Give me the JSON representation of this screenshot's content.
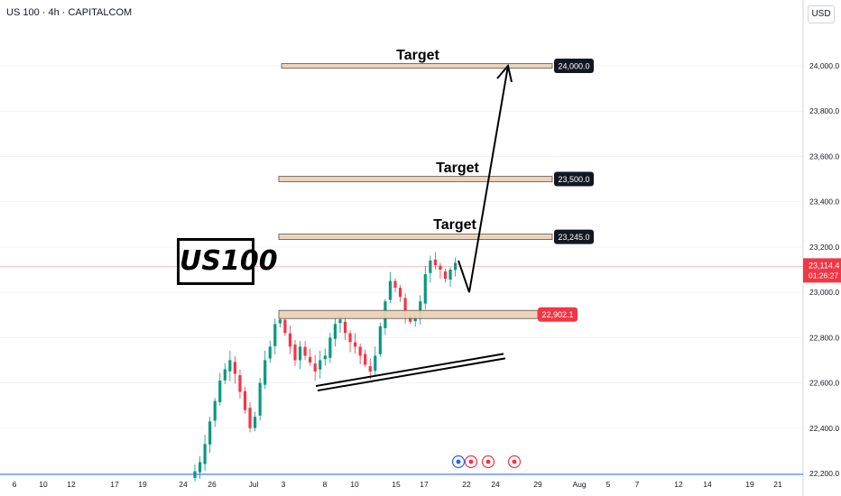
{
  "symbol": "US 100 · 4h · CAPITALCOM",
  "currency": "USD",
  "title": "US100",
  "countdown": "01:26:27",
  "colors": {
    "up": "#089981",
    "down": "#f23645",
    "zone_fill": "#e9d2b8",
    "zone_stroke": "#5a4a3a",
    "label_dark": "#131722",
    "label_red": "#f23645",
    "grid": "#f0f3fa",
    "price_line": "#f23645",
    "axis_line": "#2962ff"
  },
  "chart_data": {
    "type": "candlestick",
    "symbol": "US 100",
    "timeframe": "4h",
    "yaxis": {
      "ticks": [
        22200,
        22400,
        22600,
        22800,
        23000,
        23200,
        23400,
        23600,
        23800,
        24000
      ],
      "tick_labels": [
        "22,200.0",
        "22,400.0",
        "22,600.0",
        "22,800.0",
        "23,000.0",
        "23,200.0",
        "23,400.0",
        "23,600.0",
        "23,800.0",
        "24,000.0"
      ],
      "ylim": [
        22200,
        24200
      ]
    },
    "xaxis": {
      "tick_labels": [
        "6",
        "10",
        "12",
        "17",
        "19",
        "24",
        "26",
        "Jul",
        "3",
        "8",
        "10",
        "15",
        "17",
        "22",
        "24",
        "29",
        "Aug",
        "5",
        "7",
        "12",
        "14",
        "19",
        "21"
      ]
    },
    "current_price": {
      "value": 23114.4,
      "label": "23,114.4"
    },
    "levels": [
      {
        "name": "Target",
        "value": 24000,
        "label": "24,000.0"
      },
      {
        "name": "Target",
        "value": 23500,
        "label": "23,500.0"
      },
      {
        "name": "Target",
        "value": 23245,
        "label": "23,245.0"
      },
      {
        "name": "",
        "value": 22902.1,
        "label": "22,902.1"
      }
    ],
    "projection": {
      "points": [
        23140,
        23000,
        24000
      ]
    },
    "trendline": {
      "from": 22590,
      "to": 22760
    },
    "closes": [
      22210,
      22250,
      22330,
      22430,
      22520,
      22610,
      22660,
      22700,
      22640,
      22560,
      22480,
      22400,
      22450,
      22600,
      22700,
      22760,
      22860,
      22880,
      22820,
      22760,
      22700,
      22760,
      22720,
      22690,
      22650,
      22700,
      22720,
      22800,
      22860,
      22880,
      22820,
      22780,
      22760,
      22720,
      22680,
      22650,
      22720,
      22850,
      22960,
      23050,
      23020,
      22980,
      22900,
      22870,
      22890,
      22960,
      23080,
      23140,
      23120,
      23100,
      23060,
      23100,
      23130
    ]
  }
}
